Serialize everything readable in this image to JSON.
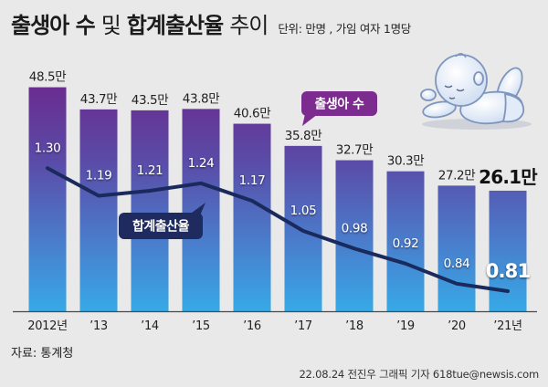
{
  "chart_data": {
    "type": "bar",
    "title_parts": [
      "출생아 수",
      "및",
      "합계출산율",
      "추이"
    ],
    "unit_note": "단위: 만명 , 가임 여자 1명당",
    "categories": [
      "2012년",
      "’13",
      "’14",
      "’15",
      "’16",
      "’17",
      "’18",
      "’19",
      "’20",
      "’21년"
    ],
    "series": [
      {
        "name": "출생아 수",
        "type": "bar",
        "values": [
          48.5,
          43.7,
          43.5,
          43.8,
          40.6,
          35.8,
          32.7,
          30.3,
          27.2,
          26.1
        ],
        "labels": [
          "48.5만",
          "43.7만",
          "43.5만",
          "43.8만",
          "40.6만",
          "35.8만",
          "32.7만",
          "30.3만",
          "27.2만",
          "26.1만"
        ]
      },
      {
        "name": "합계출산율",
        "type": "line",
        "values": [
          1.3,
          1.19,
          1.21,
          1.24,
          1.17,
          1.05,
          0.98,
          0.92,
          0.84,
          0.81
        ],
        "labels": [
          "1.30",
          "1.19",
          "1.21",
          "1.24",
          "1.17",
          "1.05",
          "0.98",
          "0.92",
          "0.84",
          "0.81"
        ]
      }
    ],
    "ylim": [
      0,
      50
    ],
    "y2lim": [
      0.73,
      1.65
    ],
    "grid": false
  },
  "source": "자료: 통계청",
  "credit": "22.08.24 전진우 그래픽 기자 618tue@newsis.com",
  "icons": {
    "illustration": "baby-lying-icon"
  },
  "colors": {
    "background": "#e9e9e9",
    "bar_gradient": [
      "#6b2a8d",
      "#5a4ba7",
      "#4a7dcc",
      "#37a9e6"
    ],
    "line": "#1b2a5c",
    "births_callout": "#7b2c8e",
    "rate_callout": "#1f2b5e"
  }
}
